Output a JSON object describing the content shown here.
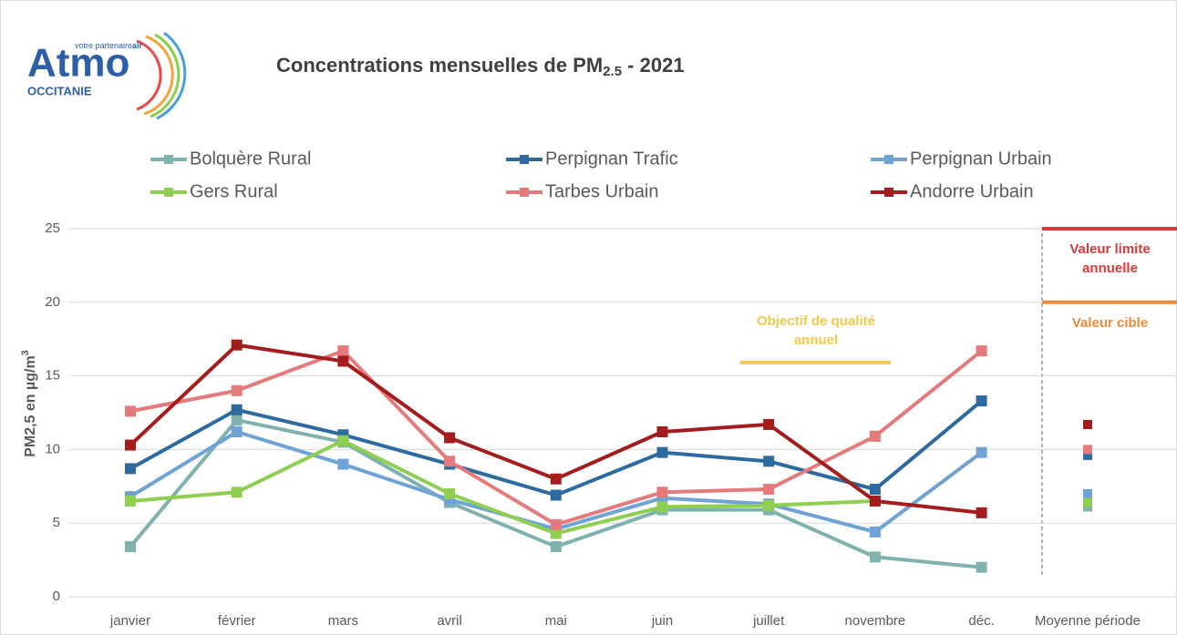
{
  "logo": {
    "name": "Atmo",
    "tagline": "votre partenaire",
    "tagline_bold": "air",
    "region": "OCCITANIE"
  },
  "chart_data": {
    "type": "line",
    "title": "Concentrations mensuelles de PM",
    "title_sub": "2.5",
    "title_end": " - 2021",
    "y_label": "PM2,5 en µg/m",
    "y_label_sup": "3",
    "categories": [
      "janvier",
      "février",
      "mars",
      "avril",
      "mai",
      "juin",
      "juillet",
      "novembre",
      "déc."
    ],
    "mean_label": "Moyenne période",
    "ylim": [
      0,
      25
    ],
    "yticks": [
      0,
      5,
      10,
      15,
      20,
      25
    ],
    "grid": true,
    "series": [
      {
        "name": "Bolquère Rural",
        "color": "#7fb2ae",
        "values": [
          3.4,
          12.0,
          10.5,
          6.4,
          3.4,
          5.9,
          5.9,
          2.7,
          2.0
        ],
        "mean": 6.1
      },
      {
        "name": "Perpignan Trafic",
        "color": "#2c6aa0",
        "values": [
          8.7,
          12.7,
          11.0,
          9.0,
          6.9,
          9.8,
          9.2,
          7.3,
          13.3
        ],
        "mean": 9.6
      },
      {
        "name": "Perpignan Urbain",
        "color": "#6fa3d6",
        "values": [
          6.8,
          11.2,
          9.0,
          6.6,
          4.6,
          6.7,
          6.3,
          4.4,
          9.8
        ],
        "mean": 7.0
      },
      {
        "name": "Gers Rural",
        "color": "#8ecf52",
        "values": [
          6.5,
          7.1,
          10.6,
          7.0,
          4.3,
          6.1,
          6.2,
          6.5,
          null
        ],
        "mean": 6.4
      },
      {
        "name": "Tarbes Urbain",
        "color": "#e57a7c",
        "values": [
          12.6,
          14.0,
          16.7,
          9.2,
          4.9,
          7.1,
          7.3,
          10.9,
          16.7
        ],
        "mean": 10.0
      },
      {
        "name": "Andorre Urbain",
        "color": "#a31d1d",
        "values": [
          10.3,
          17.1,
          16.0,
          10.8,
          8.0,
          11.2,
          11.7,
          6.5,
          5.7
        ],
        "mean": 11.7
      }
    ],
    "reference_lines": [
      {
        "label": "Valeur limite annuelle",
        "value": 25,
        "color": "#d9393b"
      },
      {
        "label": "Valeur cible",
        "value": 20,
        "color": "#ec8b3c"
      }
    ],
    "annotation": {
      "label": "Objectif de qualité annuel",
      "color": "#f2c94c"
    }
  }
}
